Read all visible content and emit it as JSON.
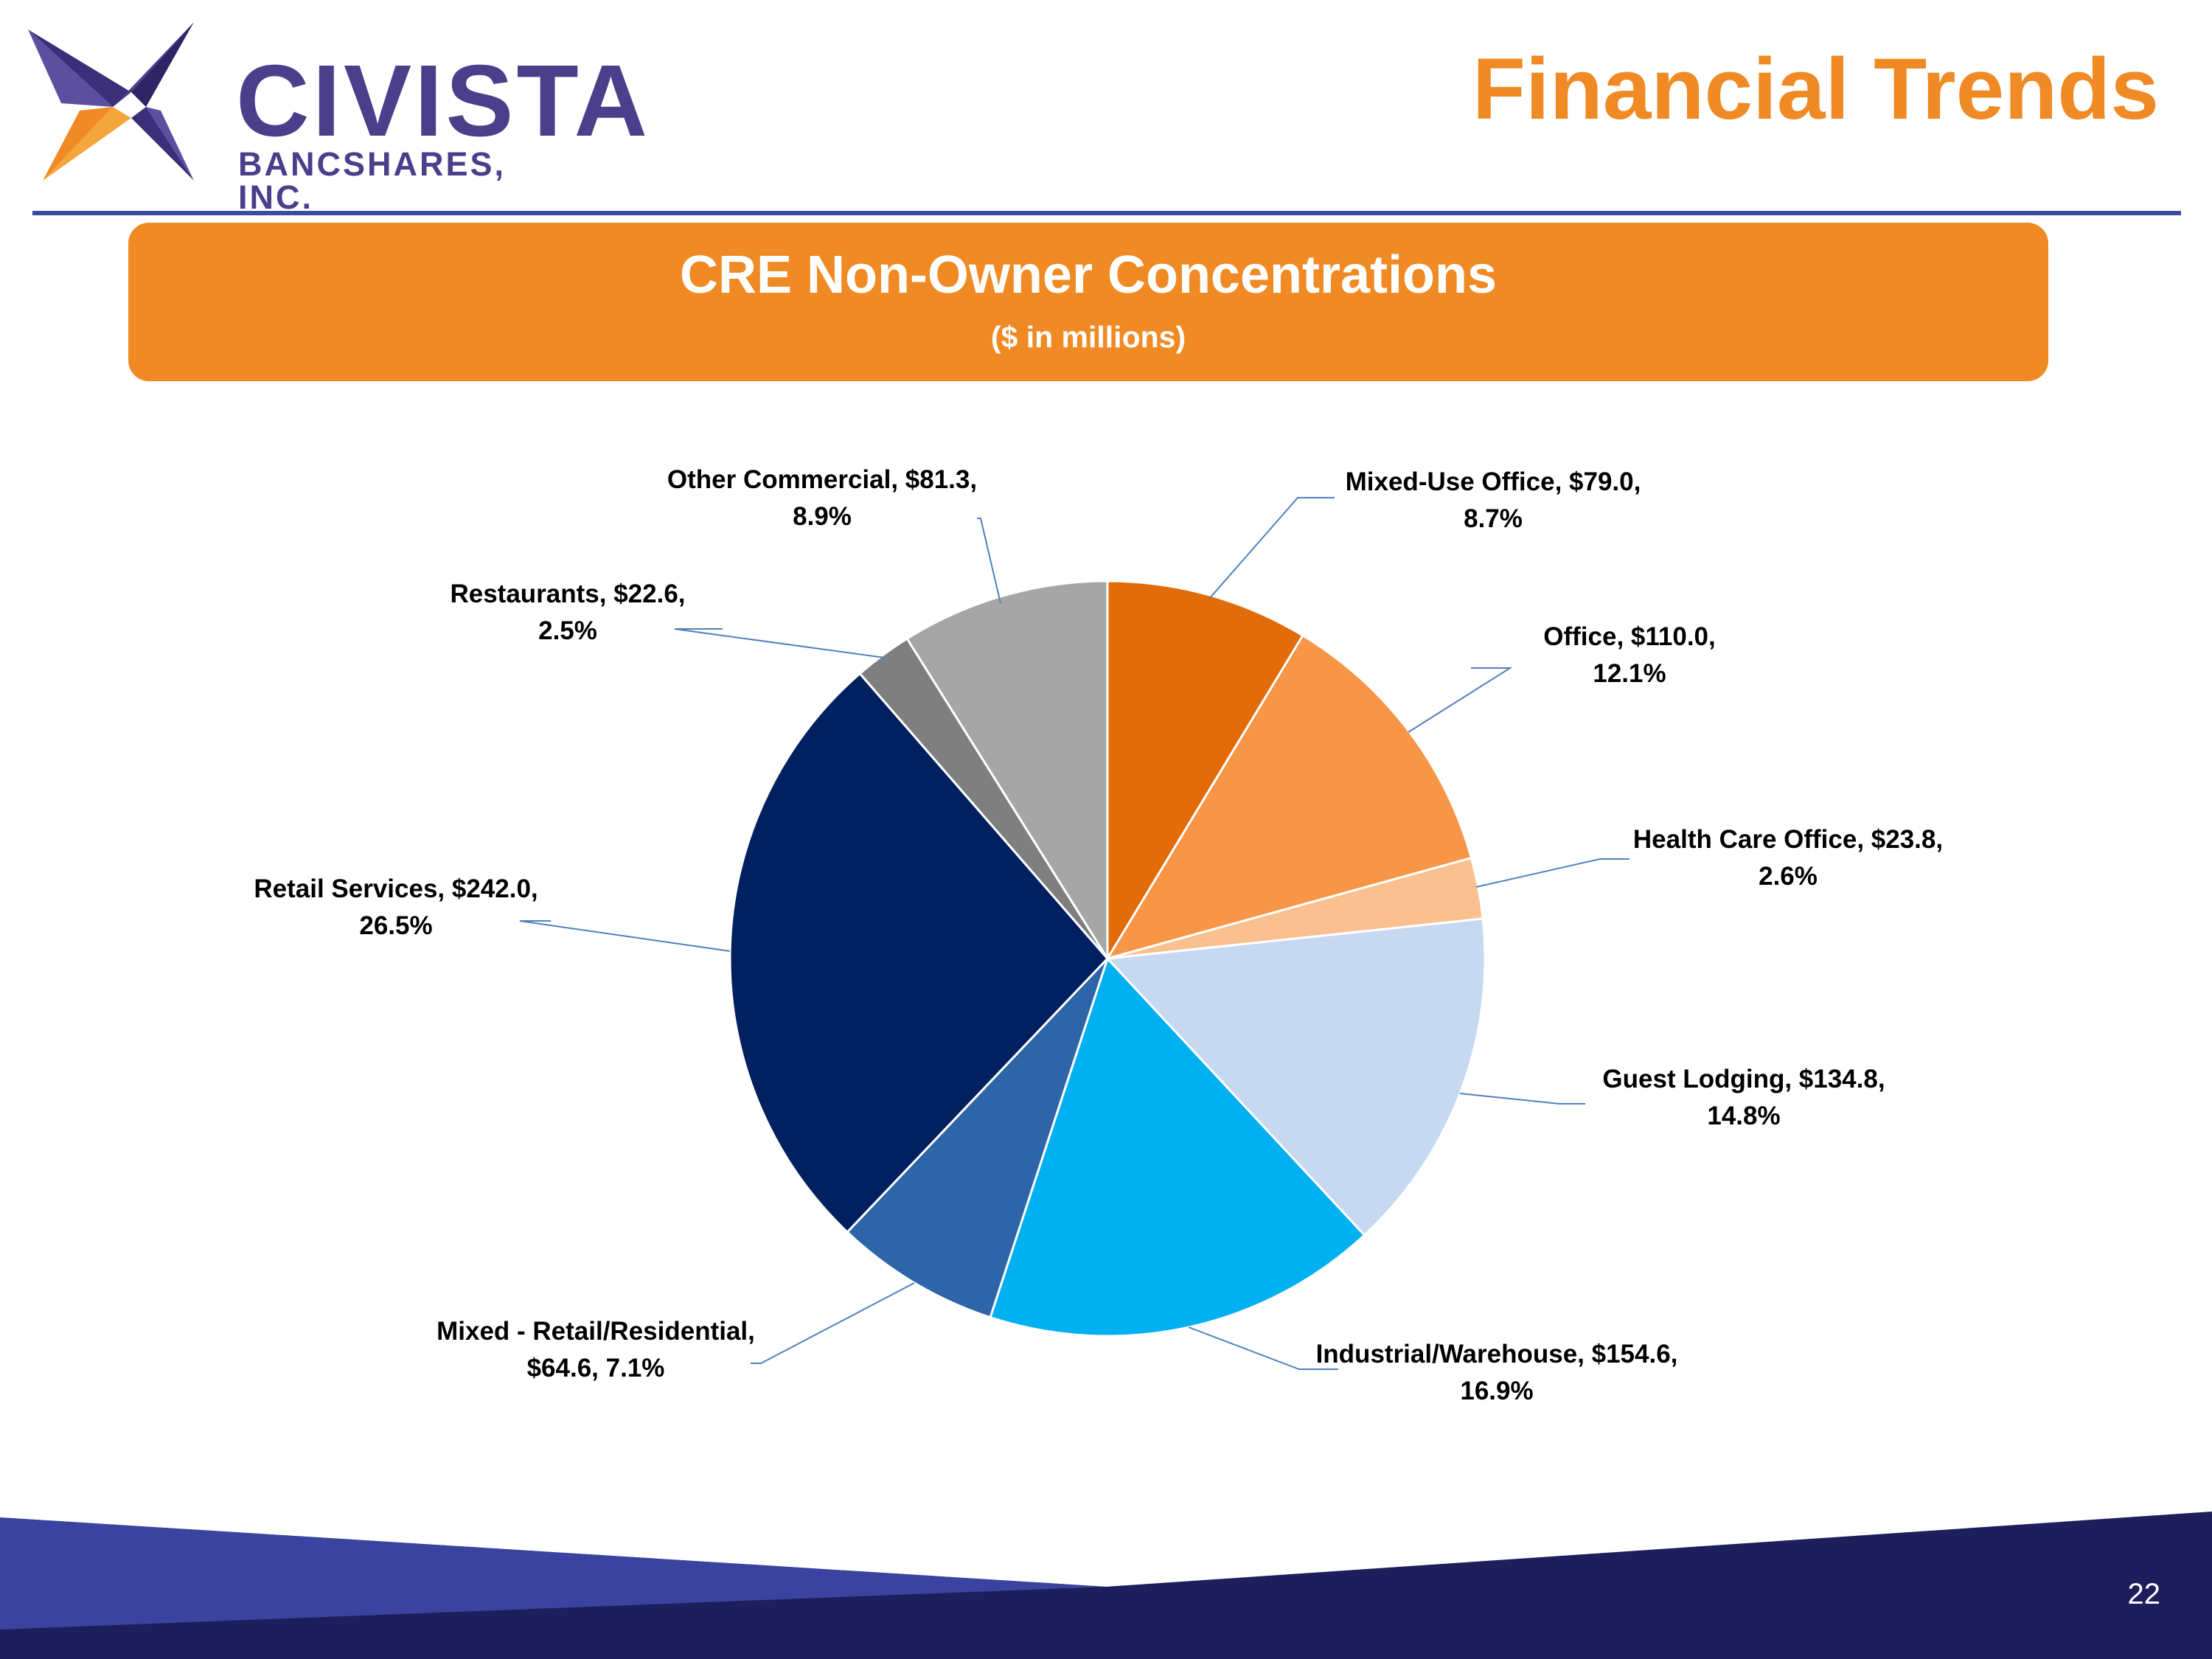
{
  "header": {
    "logo_name": "CIVISTA",
    "logo_sub": "BANCSHARES, INC.",
    "title": "Financial Trends"
  },
  "banner": {
    "title": "CRE Non-Owner Concentrations",
    "subtitle": "($ in millions)"
  },
  "footer": {
    "page_number": "22"
  },
  "colors": {
    "accent_orange": "#ef8a24",
    "brand_purple": "#4b3f8c",
    "rule_blue": "#3c4aa0",
    "footer_dark": "#1d1f5c",
    "footer_mid": "#3a44a0"
  },
  "chart_data": {
    "type": "pie",
    "start": "12 o'clock, clockwise",
    "slices": [
      {
        "label_line1": "Mixed-Use Office, $79.0,",
        "label_line2": "8.7%",
        "category": "Mixed-Use Office",
        "value": 79.0,
        "percent": 8.7,
        "color": "#e26b0a"
      },
      {
        "label_line1": "Office, $110.0,",
        "label_line2": "12.1%",
        "category": "Office",
        "value": 110.0,
        "percent": 12.1,
        "color": "#f79646"
      },
      {
        "label_line1": "Health Care Office, $23.8,",
        "label_line2": "2.6%",
        "category": "Health Care Office",
        "value": 23.8,
        "percent": 2.6,
        "color": "#fac090"
      },
      {
        "label_line1": "Guest Lodging, $134.8,",
        "label_line2": "14.8%",
        "category": "Guest Lodging",
        "value": 134.8,
        "percent": 14.8,
        "color": "#c6d9f1"
      },
      {
        "label_line1": "Industrial/Warehouse, $154.6,",
        "label_line2": "16.9%",
        "category": "Industrial/Warehouse",
        "value": 154.6,
        "percent": 16.9,
        "color": "#00b0f0"
      },
      {
        "label_line1": "Mixed - Retail/Residential,",
        "label_line2": "$64.6, 7.1%",
        "category": "Mixed - Retail/Residential",
        "value": 64.6,
        "percent": 7.1,
        "color": "#2e64a8"
      },
      {
        "label_line1": "Retail Services, $242.0,",
        "label_line2": "26.5%",
        "category": "Retail Services",
        "value": 242.0,
        "percent": 26.5,
        "color": "#002060"
      },
      {
        "label_line1": "Restaurants, $22.6,",
        "label_line2": "2.5%",
        "category": "Restaurants",
        "value": 22.6,
        "percent": 2.5,
        "color": "#7f7f7f"
      },
      {
        "label_line1": "Other Commercial, $81.3,",
        "label_line2": "8.9%",
        "category": "Other Commercial",
        "value": 81.3,
        "percent": 8.9,
        "color": "#a6a6a6"
      }
    ]
  }
}
